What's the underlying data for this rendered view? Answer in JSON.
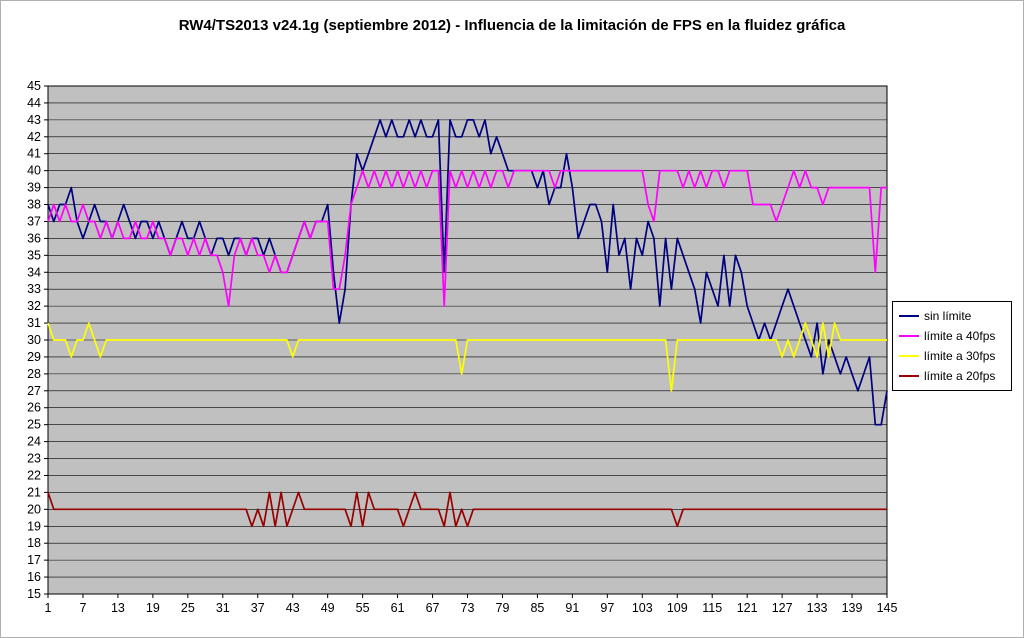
{
  "title": "RW4/TS2013 v24.1g (septiembre 2012) - Influencia de la limitación de FPS en la fluidez gráfica",
  "chart_data": {
    "type": "line",
    "x_start": 1,
    "x_end": 145,
    "x_tick_step": 6,
    "x_ticks": [
      1,
      7,
      13,
      19,
      25,
      31,
      37,
      43,
      49,
      55,
      61,
      67,
      73,
      79,
      85,
      91,
      97,
      103,
      109,
      115,
      121,
      127,
      133,
      139,
      145
    ],
    "ylim": [
      15,
      45
    ],
    "y_tick_step": 1,
    "grid": true,
    "plot_bg": "#c0c0c0",
    "gridline_color": "#000000",
    "legend_position": "right",
    "series": [
      {
        "name": "sin límite",
        "color": "#000080",
        "values": [
          38,
          37,
          38,
          38,
          39,
          37,
          36,
          37,
          38,
          37,
          37,
          36,
          37,
          38,
          37,
          36,
          37,
          37,
          36,
          37,
          36,
          35,
          36,
          37,
          36,
          36,
          37,
          36,
          35,
          36,
          36,
          35,
          36,
          36,
          35,
          36,
          36,
          35,
          36,
          35,
          34,
          34,
          35,
          36,
          37,
          36,
          37,
          37,
          38,
          34,
          31,
          33,
          38,
          41,
          40,
          41,
          42,
          43,
          42,
          43,
          42,
          42,
          43,
          42,
          43,
          42,
          42,
          43,
          34,
          43,
          42,
          42,
          43,
          43,
          42,
          43,
          41,
          42,
          41,
          40,
          40,
          40,
          40,
          40,
          39,
          40,
          38,
          39,
          39,
          41,
          39,
          36,
          37,
          38,
          38,
          37,
          34,
          38,
          35,
          36,
          33,
          36,
          35,
          37,
          36,
          32,
          36,
          33,
          36,
          35,
          34,
          33,
          31,
          34,
          33,
          32,
          35,
          32,
          35,
          34,
          32,
          31,
          30,
          31,
          30,
          31,
          32,
          33,
          32,
          31,
          30,
          29,
          31,
          28,
          30,
          29,
          28,
          29,
          28,
          27,
          28,
          29,
          25,
          25,
          27
        ]
      },
      {
        "name": "límite a 40fps",
        "color": "#ff00ff",
        "values": [
          37,
          38,
          37,
          38,
          37,
          37,
          38,
          37,
          37,
          36,
          37,
          36,
          37,
          36,
          36,
          37,
          36,
          36,
          37,
          36,
          36,
          35,
          36,
          36,
          35,
          36,
          35,
          36,
          35,
          35,
          34,
          32,
          35,
          36,
          35,
          36,
          35,
          35,
          34,
          35,
          34,
          34,
          35,
          36,
          37,
          36,
          37,
          37,
          37,
          33,
          33,
          35,
          38,
          39,
          40,
          39,
          40,
          39,
          40,
          39,
          40,
          39,
          40,
          39,
          40,
          39,
          40,
          40,
          32,
          40,
          39,
          40,
          39,
          40,
          39,
          40,
          39,
          40,
          40,
          39,
          40,
          40,
          40,
          40,
          40,
          40,
          40,
          39,
          40,
          40,
          40,
          40,
          40,
          40,
          40,
          40,
          40,
          40,
          40,
          40,
          40,
          40,
          40,
          38,
          37,
          40,
          40,
          40,
          40,
          39,
          40,
          39,
          40,
          39,
          40,
          40,
          39,
          40,
          40,
          40,
          40,
          38,
          38,
          38,
          38,
          37,
          38,
          39,
          40,
          39,
          40,
          39,
          39,
          38,
          39,
          39,
          39,
          39,
          39,
          39,
          39,
          39,
          34,
          39,
          39
        ]
      },
      {
        "name": "límite a 30fps",
        "color": "#ffff00",
        "values": [
          31,
          30,
          30,
          30,
          29,
          30,
          30,
          31,
          30,
          29,
          30,
          30,
          30,
          30,
          30,
          30,
          30,
          30,
          30,
          30,
          30,
          30,
          30,
          30,
          30,
          30,
          30,
          30,
          30,
          30,
          30,
          30,
          30,
          30,
          30,
          30,
          30,
          30,
          30,
          30,
          30,
          30,
          29,
          30,
          30,
          30,
          30,
          30,
          30,
          30,
          30,
          30,
          30,
          30,
          30,
          30,
          30,
          30,
          30,
          30,
          30,
          30,
          30,
          30,
          30,
          30,
          30,
          30,
          30,
          30,
          30,
          28,
          30,
          30,
          30,
          30,
          30,
          30,
          30,
          30,
          30,
          30,
          30,
          30,
          30,
          30,
          30,
          30,
          30,
          30,
          30,
          30,
          30,
          30,
          30,
          30,
          30,
          30,
          30,
          30,
          30,
          30,
          30,
          30,
          30,
          30,
          30,
          27,
          30,
          30,
          30,
          30,
          30,
          30,
          30,
          30,
          30,
          30,
          30,
          30,
          30,
          30,
          30,
          30,
          30,
          30,
          29,
          30,
          29,
          30,
          31,
          30,
          29,
          31,
          29,
          31,
          30,
          30,
          30,
          30,
          30,
          30,
          30,
          30,
          30
        ]
      },
      {
        "name": "límite a 20fps",
        "color": "#990000",
        "values": [
          21,
          20,
          20,
          20,
          20,
          20,
          20,
          20,
          20,
          20,
          20,
          20,
          20,
          20,
          20,
          20,
          20,
          20,
          20,
          20,
          20,
          20,
          20,
          20,
          20,
          20,
          20,
          20,
          20,
          20,
          20,
          20,
          20,
          20,
          20,
          19,
          20,
          19,
          21,
          19,
          21,
          19,
          20,
          21,
          20,
          20,
          20,
          20,
          20,
          20,
          20,
          20,
          19,
          21,
          19,
          21,
          20,
          20,
          20,
          20,
          20,
          19,
          20,
          21,
          20,
          20,
          20,
          20,
          19,
          21,
          19,
          20,
          19,
          20,
          20,
          20,
          20,
          20,
          20,
          20,
          20,
          20,
          20,
          20,
          20,
          20,
          20,
          20,
          20,
          20,
          20,
          20,
          20,
          20,
          20,
          20,
          20,
          20,
          20,
          20,
          20,
          20,
          20,
          20,
          20,
          20,
          20,
          20,
          19,
          20,
          20,
          20,
          20,
          20,
          20,
          20,
          20,
          20,
          20,
          20,
          20,
          20,
          20,
          20,
          20,
          20,
          20,
          20,
          20,
          20,
          20,
          20,
          20,
          20,
          20,
          20,
          20,
          20,
          20,
          20,
          20,
          20,
          20,
          20,
          20
        ]
      }
    ]
  }
}
